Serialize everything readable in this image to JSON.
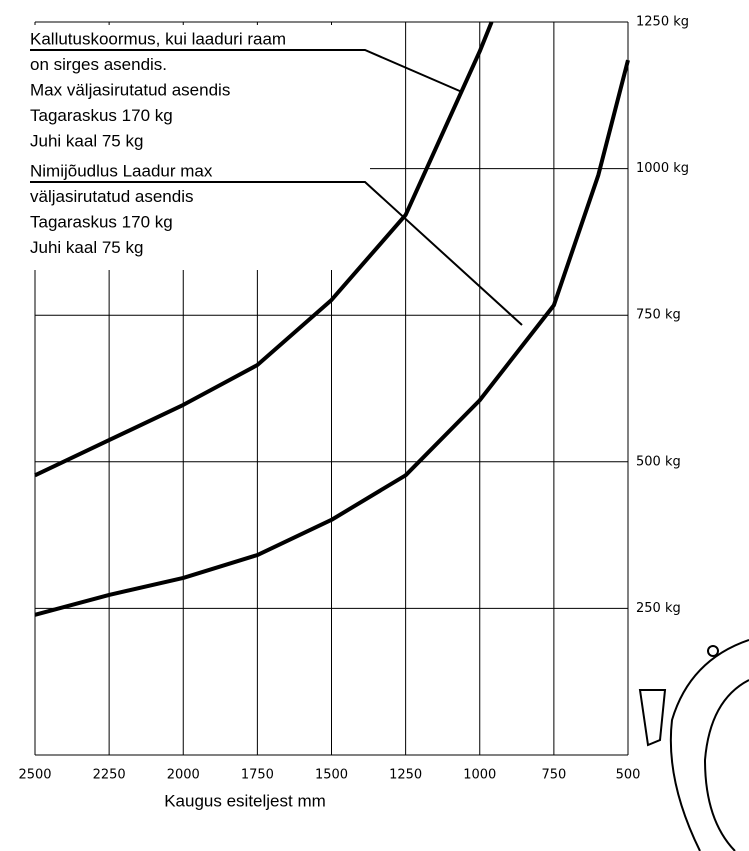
{
  "chart_data": {
    "type": "line",
    "x_label": "Kaugus esiteljest mm",
    "xlim": [
      2500,
      500
    ],
    "xticks": [
      2500,
      2250,
      2000,
      1750,
      1500,
      1250,
      1000,
      750,
      500
    ],
    "ylim": [
      0,
      1250
    ],
    "yticks": [
      {
        "value": 250,
        "label": "250 kg"
      },
      {
        "value": 500,
        "label": "500 kg"
      },
      {
        "value": 750,
        "label": "750 kg"
      },
      {
        "value": 1000,
        "label": "1000 kg"
      },
      {
        "value": 1250,
        "label": "1250 kg"
      }
    ],
    "grid": true,
    "series": [
      {
        "color": "#000000",
        "x": [
          2500,
          2250,
          2000,
          1750,
          1500,
          1250,
          1000,
          960
        ],
        "values": [
          477,
          537,
          597,
          665,
          776,
          921,
          1200,
          1250
        ]
      },
      {
        "color": "#000000",
        "x": [
          2500,
          2250,
          2000,
          1750,
          1500,
          1250,
          1000,
          750,
          600,
          500
        ],
        "values": [
          239,
          273,
          302,
          341,
          401,
          477,
          605,
          767,
          989,
          1185
        ]
      }
    ],
    "annotations": [
      {
        "lines": [
          "Kallutuskoormus, kui laaduri raam",
          "on sirges asendis.",
          "Max väljasirutatud asendis",
          "Tagaraskus 170 kg",
          "Juhi kaal 75 kg"
        ]
      },
      {
        "lines": [
          "Nimijõudlus Laadur max",
          "väljasirutatud asendis",
          "Tagaraskus 170 kg",
          "Juhi kaal 75 kg"
        ]
      }
    ]
  }
}
